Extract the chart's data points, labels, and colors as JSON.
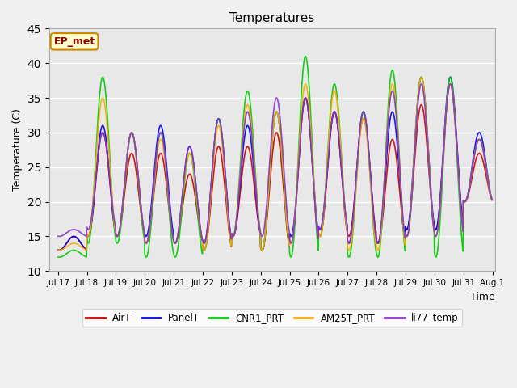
{
  "title": "Temperatures",
  "xlabel": "Time",
  "ylabel": "Temperature (C)",
  "ylim": [
    10,
    45
  ],
  "background_color": "#f0f0f0",
  "plot_bg_color": "#e8e8e8",
  "annotation_text": "EP_met",
  "annotation_bg": "#ffffcc",
  "annotation_border": "#cc8800",
  "annotation_text_color": "#8b0000",
  "series": {
    "AirT": {
      "color": "#cc0000",
      "lw": 1.2
    },
    "PanelT": {
      "color": "#0000ee",
      "lw": 1.2
    },
    "CNR1_PRT": {
      "color": "#00cc00",
      "lw": 1.2
    },
    "AM25T_PRT": {
      "color": "#ffaa00",
      "lw": 1.2
    },
    "li77_temp": {
      "color": "#8833cc",
      "lw": 1.2
    }
  },
  "xtick_labels": [
    "Jul 17",
    "Jul 18",
    "Jul 19",
    "Jul 20",
    "Jul 21",
    "Jul 22",
    "Jul 23",
    "Jul 24",
    "Jul 25",
    "Jul 26",
    "Jul 27",
    "Jul 28",
    "Jul 29",
    "Jul 30",
    "Jul 31",
    "Aug 1"
  ],
  "n_days": 15,
  "peaks_airt": [
    15,
    30,
    27,
    27,
    24,
    28,
    28,
    30,
    35,
    33,
    32,
    29,
    34,
    37,
    27
  ],
  "troughs_airt": [
    13,
    15,
    15,
    14,
    14,
    13,
    15,
    13,
    14,
    15,
    15,
    14,
    16,
    16,
    20
  ],
  "peaks_panelt": [
    15,
    31,
    30,
    31,
    28,
    32,
    31,
    33,
    35,
    33,
    33,
    33,
    38,
    38,
    30
  ],
  "troughs_panelt": [
    13,
    15,
    15,
    15,
    14,
    14,
    15,
    13,
    15,
    16,
    14,
    14,
    16,
    16,
    20
  ],
  "peaks_cnr1": [
    13,
    38,
    30,
    30,
    27,
    32,
    36,
    33,
    41,
    37,
    33,
    39,
    38,
    38,
    29
  ],
  "troughs_cnr1": [
    12,
    14,
    14,
    12,
    12,
    13,
    15,
    13,
    12,
    15,
    12,
    12,
    15,
    12,
    20
  ],
  "peaks_am25t": [
    14,
    35,
    30,
    29,
    27,
    31,
    34,
    33,
    37,
    36,
    32,
    37,
    38,
    37,
    29
  ],
  "troughs_am25t": [
    13,
    15,
    15,
    14,
    14,
    13,
    15,
    13,
    14,
    15,
    13,
    13,
    15,
    15,
    20
  ],
  "peaks_li77": [
    16,
    30,
    30,
    30,
    28,
    32,
    33,
    35,
    35,
    33,
    33,
    36,
    37,
    37,
    29
  ],
  "troughs_li77": [
    15,
    16,
    15,
    14,
    14,
    14,
    15,
    15,
    14,
    16,
    14,
    14,
    15,
    15,
    20
  ]
}
